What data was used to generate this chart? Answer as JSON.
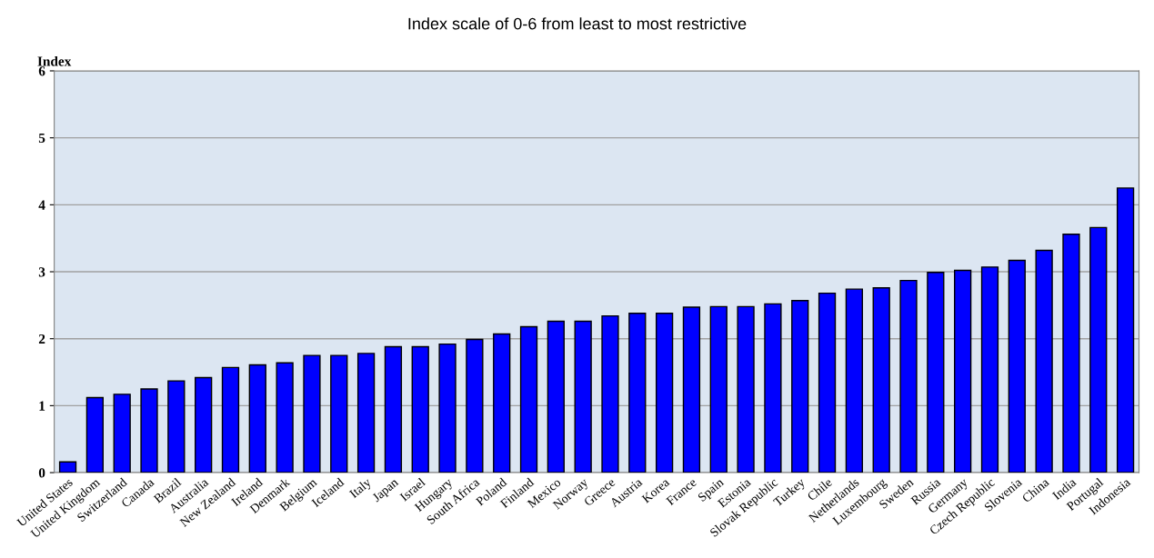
{
  "chart_data": {
    "type": "bar",
    "title": "Index scale of 0-6 from least to most restrictive",
    "ylabel": "Index",
    "categories": [
      "United States",
      "United Kingdom",
      "Switzerland",
      "Canada",
      "Brazil",
      "Australia",
      "New Zealand",
      "Ireland",
      "Denmark",
      "Belgium",
      "Iceland",
      "Italy",
      "Japan",
      "Israel",
      "Hungary",
      "South Africa",
      "Poland",
      "Finland",
      "Mexico",
      "Norway",
      "Greece",
      "Austria",
      "Korea",
      "France",
      "Spain",
      "Estonia",
      "Slovak Republic",
      "Turkey",
      "Chile",
      "Netherlands",
      "Luxembourg",
      "Sweden",
      "Russia",
      "Germany",
      "Czech Republic",
      "Slovenia",
      "China",
      "India",
      "Portugal",
      "Indonesia"
    ],
    "values": [
      0.16,
      1.12,
      1.17,
      1.25,
      1.37,
      1.42,
      1.57,
      1.61,
      1.64,
      1.75,
      1.75,
      1.78,
      1.88,
      1.88,
      1.92,
      1.99,
      2.07,
      2.18,
      2.26,
      2.26,
      2.34,
      2.38,
      2.38,
      2.47,
      2.48,
      2.48,
      2.52,
      2.57,
      2.68,
      2.74,
      2.76,
      2.87,
      2.99,
      3.02,
      3.07,
      3.17,
      3.32,
      3.56,
      3.66,
      4.25
    ],
    "color": "#0000ff",
    "ylim": [
      0,
      6
    ],
    "yticks": [
      0,
      1,
      2,
      3,
      4,
      5,
      6
    ],
    "grid": "y"
  }
}
